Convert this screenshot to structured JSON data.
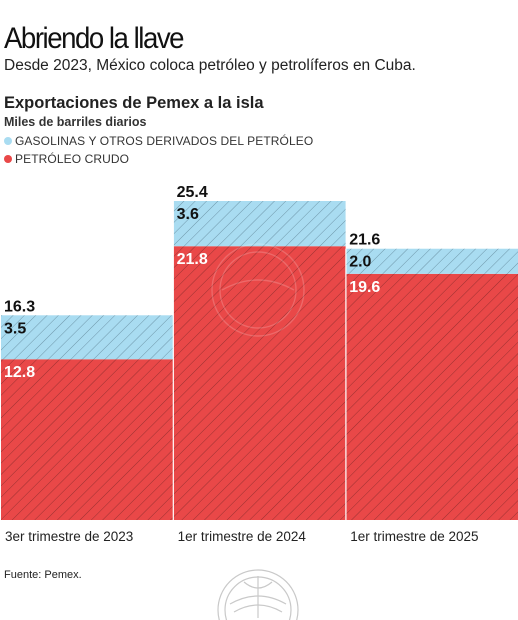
{
  "header": {
    "title": "Abriendo la llave",
    "subtitle": "Desde 2023, México coloca petróleo y petrolíferos en Cuba."
  },
  "footer": {
    "source": "Fuente: Pemex."
  },
  "colors": {
    "crudo": "#e94848",
    "gasolinas": "#a9dcf1",
    "hatch": "#5a1f1f",
    "hatch_light": "#4a6a7a"
  },
  "chart_data": {
    "type": "bar",
    "stacked": true,
    "title": "Exportaciones de Pemex a la isla",
    "ylabel": "Miles de barriles diarios",
    "categories": [
      "3er trimestre de 2023",
      "1er trimestre de 2024",
      "1er trimestre de 2025"
    ],
    "series": [
      {
        "name": "PETRÓLEO CRUDO",
        "values": [
          12.8,
          21.8,
          19.6
        ],
        "color": "#e94848"
      },
      {
        "name": "GASOLINAS Y OTROS DERIVADOS DEL PETRÓLEO",
        "values": [
          3.5,
          3.6,
          2.0
        ],
        "color": "#a9dcf1"
      }
    ],
    "totals": [
      16.3,
      25.4,
      21.6
    ],
    "value_labels": {
      "crudo": [
        "12.8",
        "21.8",
        "19.6"
      ],
      "gasolinas": [
        "3.5",
        "3.6",
        "2.0"
      ],
      "totals": [
        "16.3",
        "25.4",
        "21.6"
      ]
    },
    "legend": {
      "position": "top-left",
      "entries": [
        "GASOLINAS Y OTROS DERIVADOS DEL PETRÓLEO",
        "PETRÓLEO CRUDO"
      ]
    },
    "ylim": [
      0,
      25.4
    ],
    "grid": false,
    "pattern": "diagonal-hatch"
  }
}
